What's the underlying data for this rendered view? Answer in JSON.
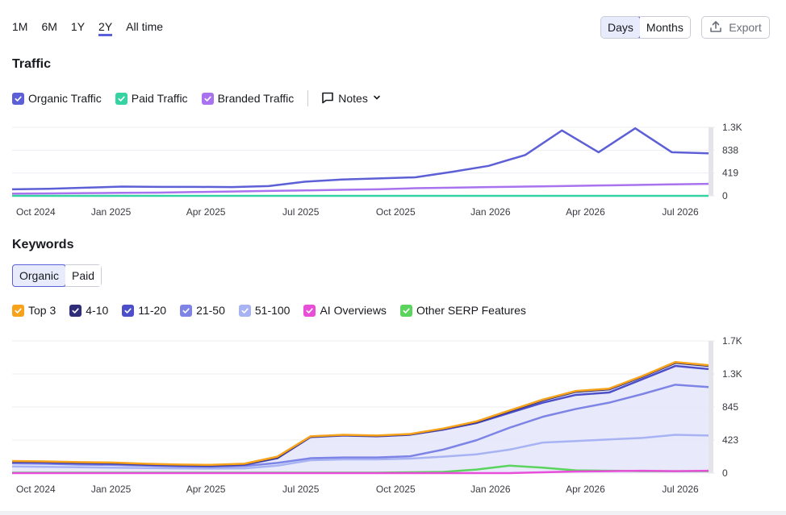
{
  "range_tabs": [
    {
      "label": "1M",
      "active": false
    },
    {
      "label": "6M",
      "active": false
    },
    {
      "label": "1Y",
      "active": false
    },
    {
      "label": "2Y",
      "active": true
    },
    {
      "label": "All time",
      "active": false
    }
  ],
  "granularity": {
    "days_label": "Days",
    "months_label": "Months",
    "selected": "Days"
  },
  "export_label": "Export",
  "traffic": {
    "title": "Traffic",
    "legend": [
      {
        "label": "Organic Traffic",
        "color": "#5c5fd6",
        "checked": true
      },
      {
        "label": "Paid Traffic",
        "color": "#34d3a1",
        "checked": true
      },
      {
        "label": "Branded Traffic",
        "color": "#a972ee",
        "checked": true
      }
    ],
    "notes_label": "Notes"
  },
  "keywords": {
    "title": "Keywords",
    "tabs": [
      {
        "label": "Organic",
        "active": true
      },
      {
        "label": "Paid",
        "active": false
      }
    ],
    "legend": [
      {
        "label": "Top 3",
        "color": "#f7a21b",
        "checked": true
      },
      {
        "label": "4-10",
        "color": "#2f2d7a",
        "checked": true
      },
      {
        "label": "11-20",
        "color": "#4d4fc9",
        "checked": true
      },
      {
        "label": "21-50",
        "color": "#7d84e6",
        "checked": true
      },
      {
        "label": "51-100",
        "color": "#a8b3f3",
        "checked": true
      },
      {
        "label": "AI Overviews",
        "color": "#e84ed7",
        "checked": true
      },
      {
        "label": "Other SERP Features",
        "color": "#5ad45c",
        "checked": true
      }
    ]
  },
  "chart_data": [
    {
      "type": "line",
      "title": "Traffic",
      "x_tick_labels": [
        "Oct 2024",
        "Jan 2025",
        "Apr 2025",
        "Jul 2025",
        "Oct 2025",
        "Jan 2026",
        "Apr 2026",
        "Jul 2026"
      ],
      "y_tick_labels": [
        "1.3K",
        "838",
        "419",
        "0"
      ],
      "ylim": [
        0,
        1257
      ],
      "x": [
        "Sep 2024",
        "Nov 2024",
        "Jan 2025",
        "Feb 2025",
        "Mar 2025",
        "May 2025",
        "Jul 2025",
        "Sep 2025",
        "Oct 2025",
        "Nov 2025",
        "Dec 2025",
        "Jan 2026",
        "Feb 2026",
        "Mar 2026",
        "Apr 2026",
        "May 2026",
        "Jun 2026",
        "Jul 2026",
        "Aug 2026",
        "Sep 2026"
      ],
      "series": [
        {
          "name": "Organic Traffic",
          "color": "#5c5fd6",
          "values": [
            120,
            130,
            150,
            170,
            165,
            165,
            160,
            180,
            260,
            300,
            320,
            340,
            440,
            550,
            750,
            1200,
            800,
            1240,
            800,
            780
          ]
        },
        {
          "name": "Paid Traffic",
          "color": "#34d3a1",
          "values": [
            0,
            0,
            0,
            0,
            0,
            0,
            0,
            0,
            0,
            0,
            0,
            0,
            0,
            0,
            0,
            0,
            0,
            0,
            0,
            0
          ]
        },
        {
          "name": "Branded Traffic",
          "color": "#a972ee",
          "values": [
            40,
            45,
            50,
            55,
            60,
            70,
            80,
            90,
            100,
            110,
            120,
            140,
            150,
            160,
            170,
            180,
            190,
            200,
            210,
            220
          ]
        }
      ],
      "grid": true
    },
    {
      "type": "area",
      "title": "Keywords",
      "x_tick_labels": [
        "Oct 2024",
        "Jan 2025",
        "Apr 2025",
        "Jul 2025",
        "Oct 2025",
        "Jan 2026",
        "Apr 2026",
        "Jul 2026"
      ],
      "y_tick_labels": [
        "1.7K",
        "1.3K",
        "845",
        "423",
        "0"
      ],
      "ylim": [
        0,
        1690
      ],
      "x": [
        "Sep 2024",
        "Nov 2024",
        "Jan 2025",
        "Feb 2025",
        "Mar 2025",
        "May 2025",
        "Jun 2025",
        "Jul 2025",
        "Aug 2025",
        "Sep 2025",
        "Oct 2025",
        "Nov 2025",
        "Dec 2025",
        "Jan 2026",
        "Feb 2026",
        "Mar 2026",
        "Apr 2026",
        "May 2026",
        "Jun 2026",
        "Jul 2026",
        "Aug 2026",
        "Sep 2026"
      ],
      "series": [
        {
          "name": "Top 3",
          "color": "#f7a21b",
          "values": [
            155,
            150,
            140,
            135,
            120,
            110,
            105,
            120,
            210,
            470,
            490,
            480,
            500,
            570,
            660,
            800,
            940,
            1050,
            1080,
            1240,
            1420,
            1380
          ]
        },
        {
          "name": "4-10",
          "color": "#2f2d7a",
          "values": [
            150,
            145,
            135,
            130,
            115,
            105,
            100,
            115,
            200,
            465,
            485,
            475,
            495,
            565,
            650,
            790,
            930,
            1040,
            1070,
            1230,
            1410,
            1370
          ]
        },
        {
          "name": "11-20",
          "color": "#4d4fc9",
          "values": [
            140,
            135,
            125,
            120,
            105,
            95,
            90,
            105,
            190,
            460,
            480,
            470,
            490,
            555,
            640,
            770,
            900,
            1000,
            1030,
            1200,
            1370,
            1330
          ]
        },
        {
          "name": "21-50",
          "color": "#7d84e6",
          "values": [
            125,
            120,
            110,
            105,
            95,
            85,
            80,
            90,
            130,
            190,
            200,
            200,
            215,
            300,
            420,
            580,
            720,
            820,
            900,
            1010,
            1130,
            1100
          ]
        },
        {
          "name": "51-100",
          "color": "#a8b3f3",
          "values": [
            85,
            80,
            75,
            70,
            65,
            60,
            58,
            60,
            95,
            165,
            175,
            175,
            185,
            210,
            240,
            300,
            390,
            410,
            430,
            450,
            490,
            480
          ]
        },
        {
          "name": "AI Overviews",
          "color": "#e84ed7",
          "values": [
            0,
            0,
            0,
            0,
            0,
            0,
            0,
            0,
            0,
            0,
            0,
            0,
            0,
            0,
            0,
            0,
            10,
            20,
            25,
            30,
            25,
            30
          ]
        },
        {
          "name": "Other SERP Features",
          "color": "#5ad45c",
          "values": [
            5,
            5,
            5,
            5,
            5,
            5,
            5,
            5,
            5,
            5,
            5,
            5,
            10,
            15,
            45,
            95,
            70,
            35,
            30,
            25,
            25,
            25
          ]
        }
      ],
      "grid": true
    }
  ]
}
